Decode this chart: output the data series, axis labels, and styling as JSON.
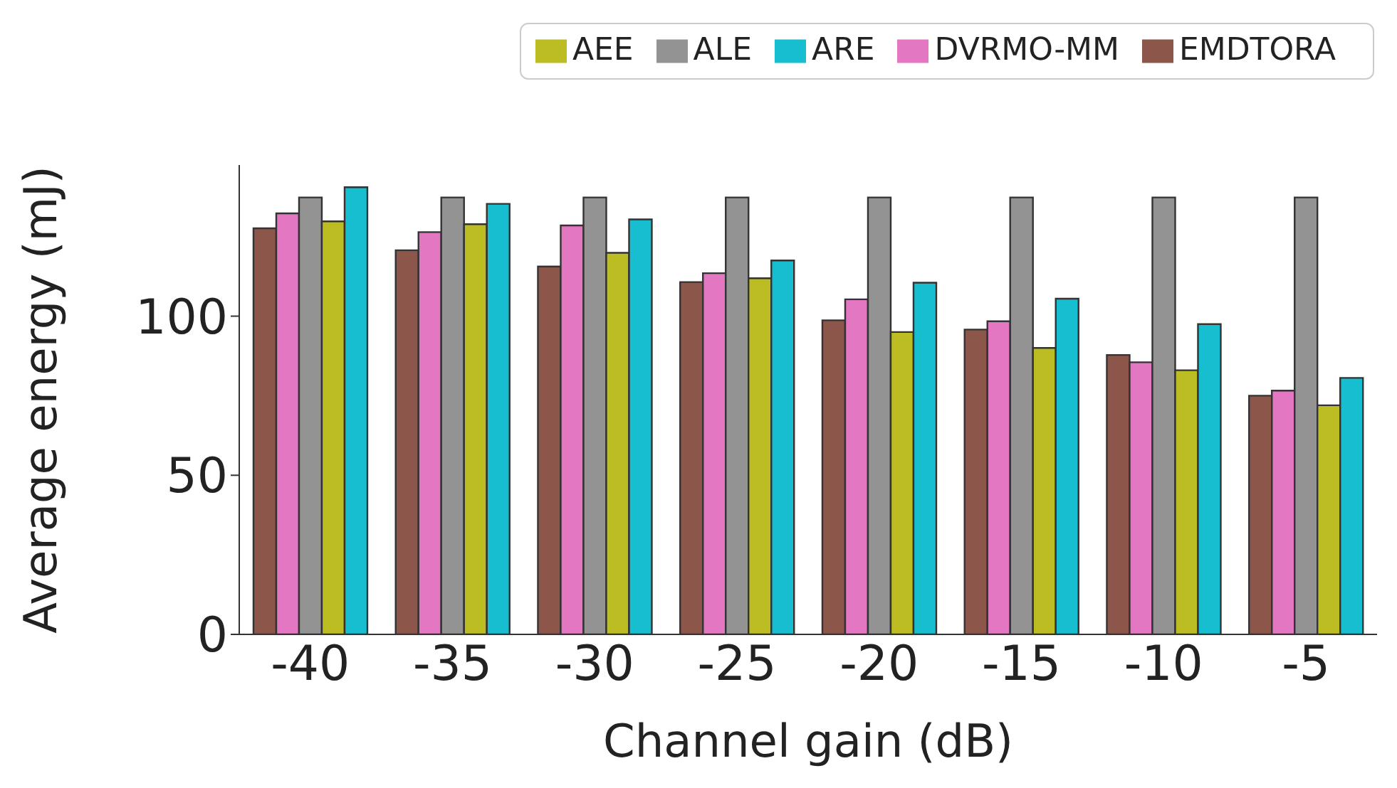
{
  "chart_data": {
    "type": "bar",
    "xlabel": "Channel gain (dB)",
    "ylabel": "Average energy (mJ)",
    "categories": [
      "-40",
      "-35",
      "-30",
      "-25",
      "-20",
      "-15",
      "-10",
      "-5"
    ],
    "series": [
      {
        "name": "EMDTORA",
        "color": "#8c564b",
        "values": [
          127.6,
          120.7,
          115.6,
          110.7,
          98.7,
          95.8,
          87.8,
          75
        ]
      },
      {
        "name": "DVRMO-MM",
        "color": "#e377c2",
        "values": [
          132.3,
          126.4,
          128.5,
          113.5,
          105.3,
          98.4,
          85.5,
          76.6
        ]
      },
      {
        "name": "ALE",
        "color": "#939393",
        "values": [
          137.3,
          137.3,
          137.3,
          137.3,
          137.3,
          137.3,
          137.3,
          137.3
        ]
      },
      {
        "name": "AEE",
        "color": "#bcbd22",
        "values": [
          129.8,
          128.9,
          119.9,
          111.9,
          95,
          90,
          83,
          72
        ]
      },
      {
        "name": "ARE",
        "color": "#17becf",
        "values": [
          140.5,
          135.3,
          130.4,
          117.5,
          110.5,
          105.5,
          97.5,
          80.6
        ]
      }
    ],
    "ylim": [
      0,
      147.5
    ],
    "yticks": [
      0,
      50,
      100
    ],
    "grid": false,
    "legend": "top right"
  }
}
